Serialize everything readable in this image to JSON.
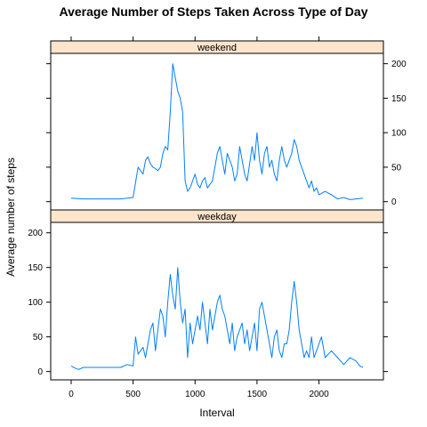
{
  "chart_data": {
    "type": "line",
    "title": "Average Number of Steps Taken Across Type of Day",
    "xlabel": "Interval",
    "ylabel": "Average number of steps",
    "xlim": [
      -165,
      2520
    ],
    "ylim": [
      -12,
      215
    ],
    "x_ticks": [
      0,
      500,
      1000,
      1500,
      2000
    ],
    "y_ticks": [
      0,
      50,
      100,
      150,
      200
    ],
    "line_color": "#0080ff",
    "strip_color": "#ffe5cc",
    "panels": [
      {
        "name": "weekend",
        "x": [
          0,
          100,
          200,
          300,
          400,
          500,
          520,
          540,
          560,
          580,
          600,
          620,
          640,
          660,
          680,
          700,
          720,
          740,
          760,
          780,
          800,
          820,
          840,
          860,
          880,
          900,
          920,
          940,
          960,
          980,
          1000,
          1020,
          1040,
          1060,
          1080,
          1100,
          1120,
          1140,
          1160,
          1180,
          1200,
          1220,
          1240,
          1260,
          1280,
          1300,
          1320,
          1340,
          1360,
          1380,
          1400,
          1420,
          1440,
          1460,
          1480,
          1500,
          1520,
          1540,
          1560,
          1580,
          1600,
          1620,
          1640,
          1660,
          1680,
          1700,
          1720,
          1740,
          1760,
          1780,
          1800,
          1820,
          1840,
          1860,
          1880,
          1900,
          1920,
          1940,
          1960,
          1980,
          2000,
          2050,
          2100,
          2150,
          2200,
          2250,
          2300,
          2355
        ],
        "y": [
          5,
          4,
          4,
          4,
          4,
          6,
          28,
          50,
          45,
          40,
          60,
          65,
          55,
          50,
          48,
          45,
          50,
          70,
          80,
          75,
          130,
          200,
          180,
          160,
          150,
          130,
          30,
          15,
          20,
          30,
          40,
          25,
          20,
          30,
          35,
          20,
          25,
          30,
          50,
          70,
          80,
          60,
          40,
          70,
          60,
          50,
          30,
          40,
          80,
          60,
          40,
          30,
          55,
          80,
          60,
          100,
          60,
          40,
          70,
          80,
          50,
          60,
          40,
          30,
          60,
          80,
          60,
          50,
          60,
          70,
          90,
          80,
          60,
          50,
          40,
          30,
          20,
          30,
          15,
          20,
          10,
          15,
          10,
          4,
          6,
          3,
          4,
          5
        ]
      },
      {
        "name": "weekday",
        "x": [
          0,
          30,
          60,
          100,
          200,
          300,
          400,
          450,
          500,
          520,
          540,
          560,
          580,
          600,
          620,
          640,
          660,
          680,
          700,
          720,
          740,
          760,
          780,
          800,
          820,
          840,
          860,
          880,
          900,
          920,
          940,
          960,
          980,
          1000,
          1020,
          1040,
          1060,
          1080,
          1100,
          1120,
          1140,
          1160,
          1180,
          1200,
          1220,
          1240,
          1260,
          1280,
          1300,
          1320,
          1340,
          1360,
          1380,
          1400,
          1420,
          1440,
          1460,
          1480,
          1500,
          1520,
          1540,
          1560,
          1580,
          1600,
          1620,
          1640,
          1660,
          1680,
          1700,
          1720,
          1740,
          1760,
          1780,
          1800,
          1820,
          1840,
          1860,
          1880,
          1900,
          1920,
          1940,
          1960,
          1980,
          2000,
          2020,
          2050,
          2100,
          2150,
          2200,
          2250,
          2300,
          2330,
          2355
        ],
        "y": [
          8,
          5,
          3,
          6,
          6,
          6,
          6,
          10,
          8,
          50,
          25,
          30,
          35,
          20,
          40,
          60,
          70,
          30,
          60,
          90,
          80,
          50,
          100,
          140,
          110,
          90,
          150,
          100,
          70,
          90,
          20,
          70,
          40,
          60,
          80,
          60,
          100,
          70,
          40,
          90,
          60,
          80,
          100,
          110,
          90,
          80,
          60,
          40,
          70,
          30,
          50,
          60,
          70,
          40,
          60,
          30,
          50,
          70,
          30,
          90,
          100,
          80,
          60,
          40,
          20,
          50,
          60,
          30,
          20,
          40,
          40,
          60,
          100,
          130,
          100,
          60,
          40,
          20,
          30,
          20,
          50,
          20,
          30,
          40,
          50,
          20,
          30,
          20,
          10,
          20,
          15,
          8,
          6
        ]
      }
    ]
  }
}
